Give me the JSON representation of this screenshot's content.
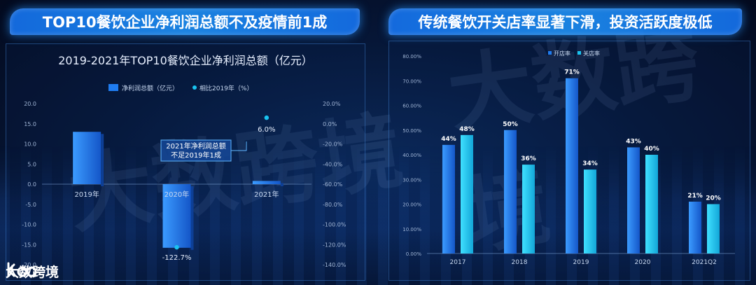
{
  "left_panel": {
    "header": "TOP10餐饮企业净利润总额不及疫情前1成"
  },
  "right_panel": {
    "header": "传统餐饮开关店率显著下滑，投资活跃度极低"
  },
  "watermark_text": "大数跨境",
  "brand": {
    "name": "大数跨境",
    "logo": "kdd-logo-icon"
  },
  "chart_data": [
    {
      "type": "bar",
      "title": "2019-2021年TOP10餐饮企业净利润总额（亿元）",
      "categories": [
        "2019年",
        "2020年",
        "2021年"
      ],
      "series": [
        {
          "name": "净利润总额（亿元）",
          "type": "bar",
          "axis": "left",
          "values": [
            13.0,
            -15.8,
            0.8
          ],
          "color": "#1f7cf0"
        },
        {
          "name": "相比2019年（%）",
          "type": "scatter",
          "axis": "right",
          "values": [
            null,
            -122.7,
            6.0
          ],
          "labels": [
            "",
            "-122.7%",
            "6.0%"
          ],
          "color": "#19c3f0"
        }
      ],
      "y_left": {
        "min": -20,
        "max": 20,
        "ticks": [
          "20.0",
          "15.0",
          "10.0",
          "5.0",
          "0.0",
          "-5.0",
          "-10.0",
          "-15.0",
          "-20.0"
        ]
      },
      "y_right": {
        "min": -140,
        "max": 20,
        "ticks": [
          "20.0%",
          "0.0%",
          "-20.0%",
          "-40.0%",
          "-60.0%",
          "-80.0%",
          "-100.0%",
          "-120.0%",
          "-140.0%"
        ]
      },
      "annotation": {
        "line1": "2021年净利润总额",
        "line2": "不足2019年1成"
      },
      "legend_position": "top"
    },
    {
      "type": "bar",
      "title": "",
      "categories": [
        "2017",
        "2018",
        "2019",
        "2020",
        "2021Q2"
      ],
      "series": [
        {
          "name": "开店率",
          "values": [
            44,
            50,
            71,
            43,
            21
          ],
          "labels": [
            "44%",
            "50%",
            "71%",
            "43%",
            "21%"
          ],
          "color": "#1f7cf0"
        },
        {
          "name": "关店率",
          "values": [
            48,
            36,
            34,
            40,
            20
          ],
          "labels": [
            "48%",
            "36%",
            "34%",
            "40%",
            "20%"
          ],
          "color": "#19c3f0"
        }
      ],
      "y": {
        "min": 0,
        "max": 80,
        "ticks": [
          "80.00%",
          "70.00%",
          "60.00%",
          "50.00%",
          "40.00%",
          "30.00%",
          "20.00%",
          "10.00%",
          "0.00%"
        ]
      },
      "legend_position": "top"
    }
  ]
}
